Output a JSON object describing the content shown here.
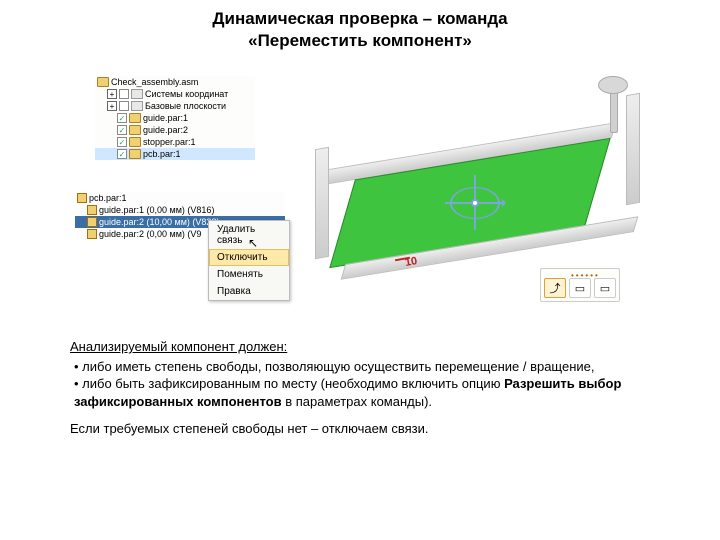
{
  "title_line1": "Динамическая проверка – команда",
  "title_line2": "«Переместить компонент»",
  "tree": {
    "root": "Check_assembly.asm",
    "n1": "Системы координат",
    "n2": "Базовые плоскости",
    "n3": "guide.par:1",
    "n4": "guide.par:2",
    "n5": "stopper.par:1",
    "n6": "pcb.par:1"
  },
  "subtree": {
    "head": "pcb.par:1",
    "r1": "guide.par:1   (0,00 мм)   (V816)",
    "r2": "guide.par:2   (10,00 мм)   (V828)",
    "r3": "guide.par:2   (0,00 мм)   (V9"
  },
  "menu": {
    "m1": "Удалить связь",
    "m2": "Отключить",
    "m3": "Поменять",
    "m4": "Правка"
  },
  "dim": "10",
  "toolbar": {
    "b1": "⤴",
    "b2": "▭",
    "b3": "▭"
  },
  "text": {
    "lead": "Анализируемый компонент должен:",
    "li1": "либо иметь степень свободы, позволяющую осуществить перемещение / вращение,",
    "li2_a": "либо быть зафиксированным по месту (необходимо включить опцию ",
    "li2_b": "Разрешить выбор зафиксированных компонентов",
    "li2_c": " в параметрах команды).",
    "tail": "Если требуемых степеней свободы нет – отключаем связи."
  }
}
